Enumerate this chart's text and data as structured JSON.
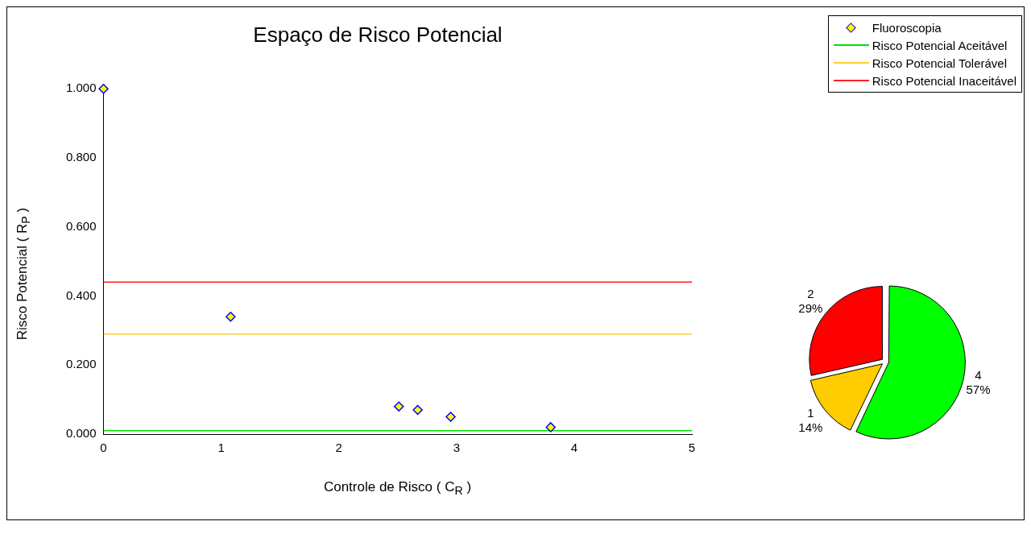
{
  "chart_data": [
    {
      "type": "scatter",
      "title": "Espaço de Risco Potencial",
      "xlabel": "Controle de Risco ( C$_{R}$ )",
      "ylabel": "Risco Potencial  ( R$_{P}$ )",
      "series": [
        {
          "name": "Fluoroscopia",
          "type": "scatter",
          "color": "#ffff00",
          "x": [
            0,
            1.08,
            2.51,
            2.67,
            2.95,
            3.8
          ],
          "values": [
            1.0,
            0.34,
            0.08,
            0.07,
            0.05,
            0.02
          ],
          "marker": "diamond"
        },
        {
          "name": "Risco Potencial Aceitável",
          "type": "line",
          "color": "#00e000",
          "x": [
            0,
            5
          ],
          "values": [
            0.01,
            0.01
          ]
        },
        {
          "name": "Risco Potencial Tolerável",
          "type": "line",
          "color": "#ffcc33",
          "x": [
            0,
            5
          ],
          "values": [
            0.29,
            0.29
          ]
        },
        {
          "name": "Risco Potencial Inaceitável",
          "type": "line",
          "color": "#ff2020",
          "x": [
            0,
            5
          ],
          "values": [
            0.44,
            0.44
          ]
        }
      ],
      "marker": "none",
      "xlim": [
        0,
        5
      ],
      "xticks": [
        0,
        1,
        2,
        3,
        4,
        5
      ],
      "ylim": [
        0,
        1
      ],
      "yticks": [
        {
          "value": 0,
          "label": "0.000"
        },
        {
          "value": 0.2,
          "label": "0.200"
        },
        {
          "value": 0.4,
          "label": "0.400"
        },
        {
          "value": 0.6,
          "label": "0.600"
        },
        {
          "value": 0.8,
          "label": "0.800"
        },
        {
          "value": 1,
          "label": "1.000"
        }
      ],
      "grid": false,
      "legend": "top right"
    },
    {
      "type": "pie",
      "categories": [
        null,
        null,
        null
      ],
      "values": [
        4,
        1,
        2
      ],
      "colors": [
        "#00ff00",
        "#ffcc00",
        "#ff0000"
      ],
      "value_labels": [
        "4\n57%",
        "1\n14%",
        "2\n29%"
      ],
      "legend": false
    }
  ]
}
